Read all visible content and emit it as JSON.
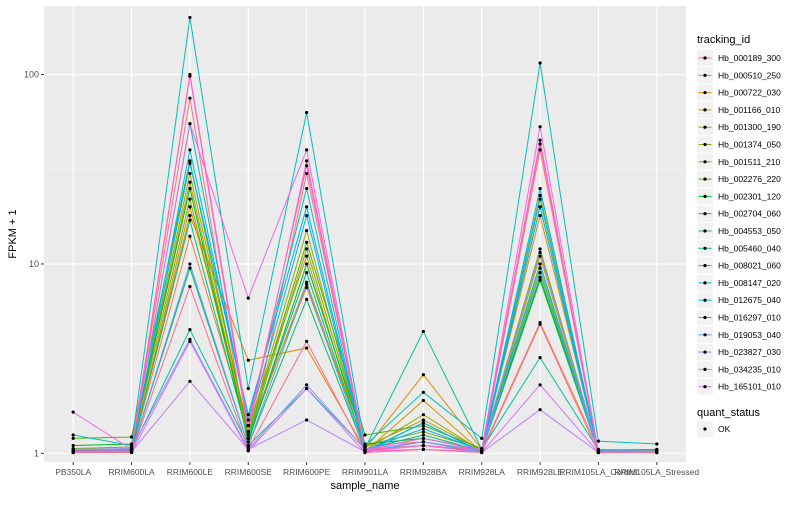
{
  "chart_data": {
    "type": "line",
    "title": "",
    "xlabel": "sample_name",
    "ylabel": "FPKM + 1",
    "y_scale": "log10",
    "ylim": [
      0.9,
      230
    ],
    "y_ticks": [
      1,
      10,
      100
    ],
    "y_tick_labels": [
      "1",
      "10",
      "100"
    ],
    "grid": true,
    "panel_background": "#ebebeb",
    "categories": [
      "PB350LA",
      "RRIM600LA",
      "RRIM600LE",
      "RRIM600SE",
      "RRIM600PE",
      "RRIM901LA",
      "RRIM928BA",
      "RRIM928LA",
      "RRIM928LE",
      "RRIM105LA_Control",
      "RRIM105LA_Stressed"
    ],
    "legend": {
      "position": "right",
      "color_title": "tracking_id",
      "shape_title": "quant_status",
      "shape_entries": [
        "OK"
      ]
    },
    "series": [
      {
        "name": "Hb_000189_300",
        "color": "#F8766D",
        "values": [
          1.05,
          1.05,
          75,
          1.08,
          30,
          1.05,
          1.1,
          1.02,
          40,
          1.02,
          1.02
        ]
      },
      {
        "name": "Hb_000510_250",
        "color": "#EE8044",
        "values": [
          1.02,
          1.03,
          14,
          1.3,
          7.5,
          1.1,
          1.15,
          1.03,
          4.9,
          1.05,
          1.03
        ]
      },
      {
        "name": "Hb_000722_030",
        "color": "#E08B00",
        "values": [
          1.03,
          1.05,
          18,
          3.1,
          3.6,
          1.05,
          2.6,
          1.05,
          18,
          1.03,
          1.02
        ]
      },
      {
        "name": "Hb_001166_010",
        "color": "#CF9400",
        "values": [
          1.01,
          1.02,
          20,
          1.4,
          11,
          1.02,
          1.9,
          1.02,
          11,
          1.02,
          1.01
        ]
      },
      {
        "name": "Hb_001300_190",
        "color": "#B79F00",
        "values": [
          1.04,
          1.06,
          27,
          1.2,
          8,
          1.08,
          1.5,
          1.04,
          20,
          1.03,
          1.03
        ]
      },
      {
        "name": "Hb_001374_050",
        "color": "#9CA700",
        "values": [
          1.02,
          1.04,
          30,
          1.3,
          15,
          1.04,
          1.6,
          1.03,
          23,
          1.02,
          1.02
        ]
      },
      {
        "name": "Hb_001511_210",
        "color": "#7CAE00",
        "values": [
          1.06,
          1.08,
          22,
          1.2,
          12,
          1.1,
          1.3,
          1.05,
          12,
          1.03,
          1.04
        ]
      },
      {
        "name": "Hb_002276_220",
        "color": "#4DB400",
        "values": [
          1.2,
          1.22,
          35,
          1.25,
          13,
          1.25,
          1.4,
          1.06,
          9,
          1.04,
          1.05
        ]
      },
      {
        "name": "Hb_002301_120",
        "color": "#00B81F",
        "values": [
          1.1,
          1.12,
          25,
          1.15,
          10,
          1.12,
          1.2,
          1.04,
          8.5,
          1.03,
          1.03
        ]
      },
      {
        "name": "Hb_002704_060",
        "color": "#00BC59",
        "values": [
          1.01,
          1.02,
          9.5,
          1.1,
          6.5,
          1.03,
          1.1,
          1.02,
          8.2,
          1.02,
          1.01
        ]
      },
      {
        "name": "Hb_004553_050",
        "color": "#00BF7D",
        "values": [
          1.03,
          1.03,
          17,
          1.2,
          9,
          1.05,
          1.25,
          1.03,
          10,
          1.02,
          1.02
        ]
      },
      {
        "name": "Hb_005460_040",
        "color": "#00C19C",
        "values": [
          1.04,
          1.04,
          4.5,
          1.1,
          2.2,
          1.06,
          4.4,
          1.05,
          3.2,
          1.04,
          1.03
        ]
      },
      {
        "name": "Hb_008021_060",
        "color": "#00C0B8",
        "values": [
          1.25,
          1.1,
          200,
          2.2,
          63,
          1.1,
          2.1,
          1.2,
          115,
          1.16,
          1.12
        ]
      },
      {
        "name": "Hb_008147_020",
        "color": "#00BCD1",
        "values": [
          1.01,
          1.02,
          40,
          1.5,
          25,
          1.02,
          1.45,
          1.01,
          22,
          1.01,
          1.01
        ]
      },
      {
        "name": "Hb_012675_040",
        "color": "#00B6E7",
        "values": [
          1.02,
          1.04,
          55,
          1.4,
          18,
          1.03,
          1.45,
          1.02,
          20,
          1.01,
          1.01
        ]
      },
      {
        "name": "Hb_016297_010",
        "color": "#00ADFA",
        "values": [
          1.03,
          1.05,
          34,
          1.6,
          20,
          1.04,
          1.35,
          1.03,
          25,
          1.02,
          1.02
        ]
      },
      {
        "name": "Hb_019053_040",
        "color": "#619CFF",
        "values": [
          1.01,
          1.02,
          10,
          1.1,
          7.8,
          1.02,
          1.15,
          1.01,
          9.5,
          1.01,
          1.01
        ]
      },
      {
        "name": "Hb_023827_030",
        "color": "#8F91FF",
        "values": [
          1.05,
          1.06,
          4,
          1.05,
          2.3,
          1.05,
          1.15,
          1.04,
          11.5,
          1.03,
          1.03
        ]
      },
      {
        "name": "Hb_034235_010",
        "color": "#B983FF",
        "values": [
          1.02,
          1.02,
          2.4,
          1.05,
          1.5,
          1.02,
          1.1,
          1.01,
          1.7,
          1.01,
          1.01
        ]
      },
      {
        "name": "Hb_165101_010",
        "color": "#D874FD",
        "values": [
          1.01,
          1.01,
          3.9,
          1.03,
          2.2,
          1.01,
          1.05,
          1.01,
          2.3,
          1.01,
          1.01
        ]
      },
      {
        "name": "",
        "color": "#EE67E5",
        "values": [
          1.65,
          1.05,
          55,
          6.6,
          40,
          1.05,
          1.2,
          1.05,
          53,
          1.02,
          1.02
        ]
      },
      {
        "name": "",
        "color": "#FC61D5",
        "values": [
          1.02,
          1.02,
          98,
          1.3,
          35,
          1.03,
          1.05,
          1.02,
          45,
          1.01,
          1.01
        ]
      },
      {
        "name": "",
        "color": "#FF65BB",
        "values": [
          1.04,
          1.04,
          100,
          1.4,
          33,
          1.04,
          1.1,
          1.04,
          43,
          1.02,
          1.02
        ]
      },
      {
        "name": "",
        "color": "#FF6C91",
        "values": [
          1.01,
          1.01,
          7.6,
          1.05,
          3.9,
          1.01,
          1.05,
          1.01,
          4.8,
          1.01,
          1.01
        ]
      }
    ]
  }
}
